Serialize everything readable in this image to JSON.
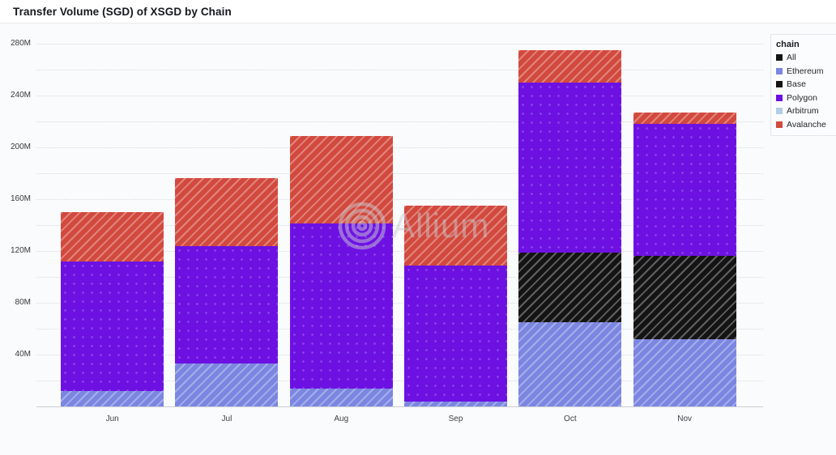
{
  "window": {
    "title": "Transfer Volume (SGD) of XSGD by Chain"
  },
  "watermark": {
    "text": "Allium",
    "icon": "concentric-rings-logo",
    "color": "#c9cbce"
  },
  "legend": {
    "title": "chain",
    "position": "top-right"
  },
  "chart_data": {
    "type": "bar",
    "stacked": true,
    "title": "Transfer Volume (SGD) of XSGD by Chain",
    "unit": "SGD, millions",
    "categories": [
      "Jun",
      "Jul",
      "Aug",
      "Sep",
      "Oct",
      "Nov"
    ],
    "series": [
      {
        "name": "All",
        "color": "#141414",
        "pattern": "diagonal",
        "values": [
          0,
          0,
          0,
          0,
          0,
          0
        ]
      },
      {
        "name": "Ethereum",
        "color": "#7b86e1",
        "pattern": "diagonal",
        "values": [
          12,
          33,
          14,
          4,
          65,
          52
        ]
      },
      {
        "name": "Base",
        "color": "#141414",
        "pattern": "diagonal",
        "values": [
          0,
          0,
          0,
          0,
          54,
          64
        ]
      },
      {
        "name": "Polygon",
        "color": "#6d11e3",
        "pattern": "dots",
        "values": [
          100,
          91,
          127,
          105,
          131,
          102
        ]
      },
      {
        "name": "Arbitrum",
        "color": "#b3cde8",
        "pattern": "diagonal",
        "values": [
          0,
          0,
          0,
          0,
          0,
          0
        ]
      },
      {
        "name": "Avalanche",
        "color": "#d2493e",
        "pattern": "diagonal",
        "values": [
          38,
          52,
          68,
          46,
          25,
          9
        ]
      }
    ],
    "totals": [
      150,
      176,
      209,
      155,
      275,
      227
    ],
    "xlabel": "",
    "ylabel": "",
    "ylim": [
      0,
      280
    ],
    "ytick_step": 40,
    "grid_step": 20,
    "ytick_suffix": "M",
    "grid": "dotted-horizontal",
    "legend_title": "chain",
    "legend_position": "top-right"
  }
}
